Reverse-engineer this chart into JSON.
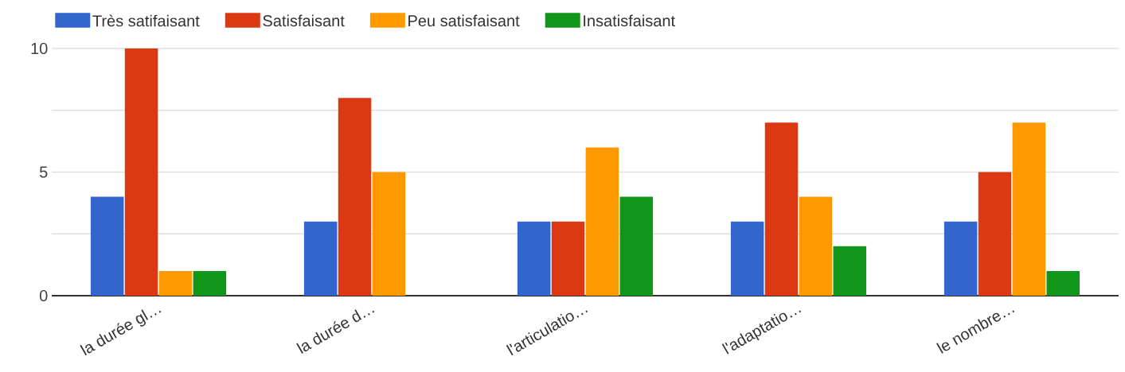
{
  "chart_data": {
    "type": "bar",
    "categories": [
      "la durée gl…",
      "la durée d…",
      "l'articulatio…",
      "l'adaptatio…",
      "le nombre…"
    ],
    "series": [
      {
        "name": "Très satifaisant",
        "color": "#3366cc",
        "values": [
          4,
          3,
          3,
          3,
          3
        ]
      },
      {
        "name": "Satisfaisant",
        "color": "#dc3912",
        "values": [
          10,
          8,
          3,
          7,
          5
        ]
      },
      {
        "name": "Peu satisfaisant",
        "color": "#ff9900",
        "values": [
          1,
          5,
          6,
          4,
          7
        ]
      },
      {
        "name": "Insatisfaisant",
        "color": "#109618",
        "values": [
          1,
          0,
          4,
          2,
          1
        ]
      }
    ],
    "ylim": [
      0,
      10
    ],
    "yticks": [
      0,
      {
        "value": 2.5,
        "label": null
      },
      5,
      {
        "value": 7.5,
        "label": null
      },
      10
    ],
    "grid": "y",
    "legend": "top"
  }
}
